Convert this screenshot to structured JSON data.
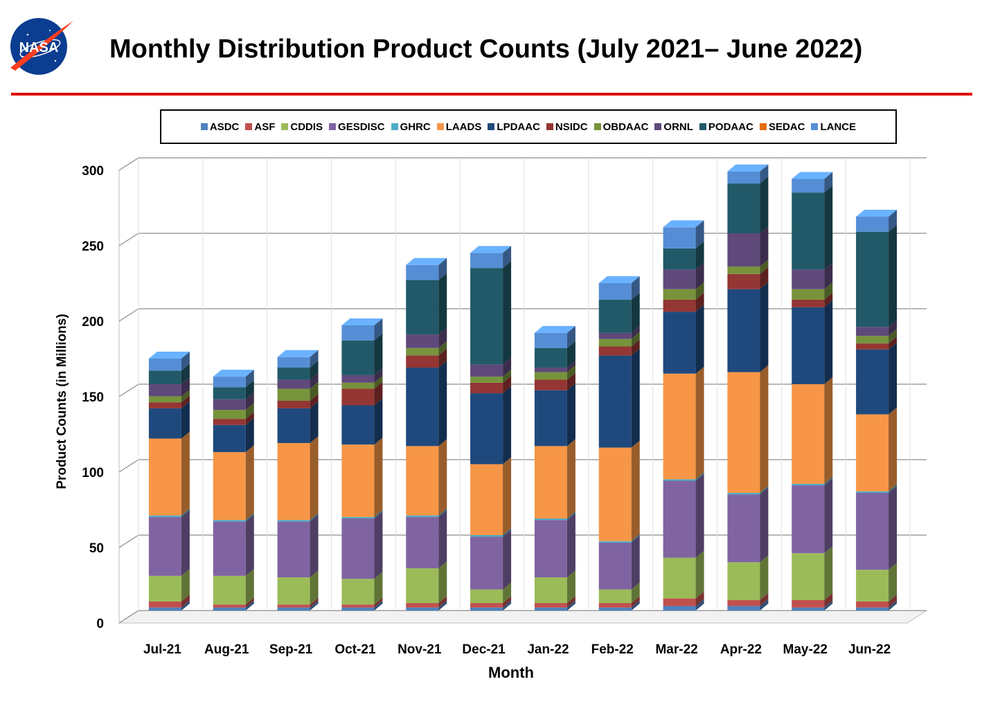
{
  "header": {
    "logo_text": "NASA",
    "title": "Monthly Distribution Product Counts (July 2021– June 2022)"
  },
  "chart_data": {
    "type": "bar",
    "stacked": true,
    "title": "Monthly Distribution Product Counts (July 2021– June 2022)",
    "xlabel": "Month",
    "ylabel": "Product Counts (in Millions)",
    "ylim": [
      0,
      300
    ],
    "yticks": [
      0,
      50,
      100,
      150,
      200,
      250,
      300
    ],
    "grid": true,
    "legend_position": "top",
    "categories": [
      "Jul-21",
      "Aug-21",
      "Sep-21",
      "Oct-21",
      "Nov-21",
      "Dec-21",
      "Jan-22",
      "Feb-22",
      "Mar-22",
      "Apr-22",
      "May-22",
      "Jun-22"
    ],
    "series": [
      {
        "name": "ASDC",
        "color": "#4f81bd",
        "values": [
          2,
          2,
          2,
          2,
          2,
          2,
          2,
          2,
          3,
          3,
          2,
          2
        ]
      },
      {
        "name": "ASF",
        "color": "#c0504d",
        "values": [
          4,
          2,
          2,
          2,
          3,
          3,
          3,
          3,
          5,
          4,
          5,
          4
        ]
      },
      {
        "name": "CDDIS",
        "color": "#9bbb59",
        "values": [
          17,
          19,
          18,
          17,
          23,
          9,
          17,
          9,
          27,
          25,
          31,
          21
        ]
      },
      {
        "name": "GESDISC",
        "color": "#8064a2",
        "values": [
          39,
          36,
          37,
          40,
          34,
          35,
          38,
          31,
          51,
          45,
          45,
          51
        ]
      },
      {
        "name": "GHRC",
        "color": "#4bacc6",
        "values": [
          1,
          1,
          1,
          1,
          1,
          1,
          1,
          1,
          1,
          1,
          1,
          1
        ]
      },
      {
        "name": "LAADS",
        "color": "#f79646",
        "values": [
          51,
          45,
          51,
          48,
          46,
          47,
          48,
          62,
          70,
          80,
          66,
          51
        ]
      },
      {
        "name": "LPDAAC",
        "color": "#1f497d",
        "values": [
          20,
          18,
          23,
          26,
          52,
          47,
          37,
          61,
          41,
          55,
          51,
          43
        ]
      },
      {
        "name": "NSIDC",
        "color": "#943634",
        "values": [
          4,
          4,
          5,
          11,
          8,
          7,
          7,
          6,
          8,
          10,
          5,
          4
        ]
      },
      {
        "name": "OBDAAC",
        "color": "#77933c",
        "values": [
          4,
          6,
          8,
          4,
          5,
          4,
          5,
          5,
          7,
          5,
          7,
          5
        ]
      },
      {
        "name": "ORNL",
        "color": "#5f497a",
        "values": [
          8,
          7,
          6,
          5,
          9,
          8,
          3,
          4,
          13,
          22,
          13,
          6
        ]
      },
      {
        "name": "PODAAC",
        "color": "#215968",
        "values": [
          9,
          8,
          8,
          23,
          36,
          64,
          13,
          22,
          14,
          33,
          51,
          63
        ]
      },
      {
        "name": "SEDAC",
        "color": "#e46c0a",
        "values": [
          0,
          0,
          0,
          0,
          0,
          0,
          0,
          0,
          0,
          0,
          0,
          0
        ]
      },
      {
        "name": "LANCE",
        "color": "#558ed5",
        "values": [
          8,
          7,
          7,
          10,
          10,
          10,
          10,
          11,
          14,
          8,
          9,
          10
        ]
      }
    ]
  }
}
